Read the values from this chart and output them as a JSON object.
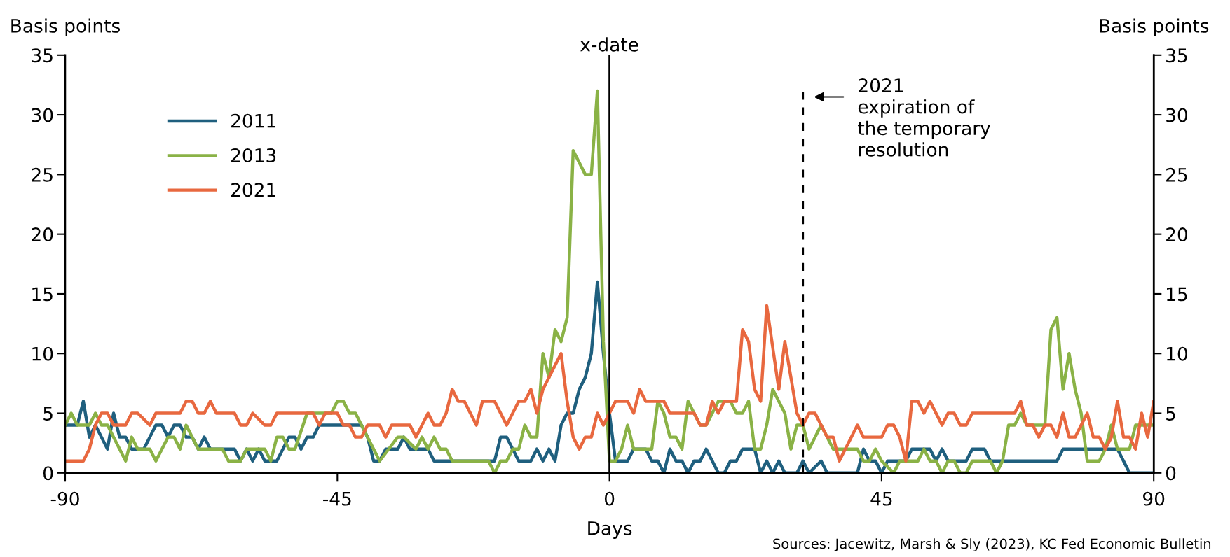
{
  "chart_data": {
    "type": "line",
    "xlabel": "Days",
    "ylabel": "Basis points",
    "y2label": "Basis points",
    "xlim": [
      -90,
      90
    ],
    "xticks": [
      -90,
      -45,
      0,
      45,
      90
    ],
    "ylim": [
      0,
      35
    ],
    "yticks": [
      0,
      5,
      10,
      15,
      20,
      25,
      30,
      35
    ],
    "y2lim": [
      0,
      35
    ],
    "y2ticks": [
      0,
      5,
      10,
      15,
      20,
      25,
      30,
      35
    ],
    "grid": false,
    "legend": "top left",
    "marker": "none",
    "line_style": "solid",
    "ref_lines": [
      {
        "axis": "x",
        "value": 0,
        "label": "x-date",
        "color": "#000000",
        "line_style": "solid"
      },
      {
        "axis": "x",
        "value": 32,
        "label": "2021\nexpiration of\nthe temporary\nresolution",
        "color": "#000000",
        "line_style": "dashed"
      }
    ],
    "annotations": [
      "Sources: Jacewitz, Marsh & Sly (2023), KC Fed Economic Bulletin"
    ],
    "series": [
      {
        "name": "2011",
        "color": "#1f5f7e",
        "x": [
          -90,
          -88,
          -87,
          -86,
          -85,
          -84,
          -83,
          -82,
          -81,
          -80,
          -79,
          -77,
          -75,
          -74,
          -73,
          -72,
          -71,
          -70,
          -69,
          -68,
          -67,
          -66,
          -62,
          -61,
          -60,
          -59,
          -58,
          -57,
          -55,
          -54,
          -53,
          -52,
          -51,
          -50,
          -49,
          -48,
          -41,
          -40,
          -39,
          -38,
          -37,
          -35,
          -34,
          -33,
          -30,
          -29,
          -19,
          -18,
          -17,
          -16,
          -15,
          -13,
          -12,
          -11,
          -10,
          -9,
          -8,
          -7,
          -6,
          -5,
          -4,
          -3,
          -2,
          -1,
          0,
          1,
          3,
          4,
          6,
          7,
          8,
          9,
          10,
          11,
          12,
          13,
          14,
          15,
          16,
          18,
          19,
          20,
          21,
          22,
          24,
          25,
          26,
          27,
          28,
          29,
          31,
          32,
          33,
          35,
          36,
          41,
          42,
          43,
          44,
          45,
          46,
          49,
          50,
          53,
          54,
          55,
          56,
          59,
          60,
          62,
          63,
          74,
          75,
          84,
          85,
          86,
          90
        ],
        "values": [
          4,
          4,
          6,
          3,
          4,
          3,
          2,
          5,
          3,
          3,
          2,
          2,
          4,
          4,
          3,
          4,
          4,
          3,
          3,
          2,
          3,
          2,
          2,
          1,
          2,
          1,
          2,
          1,
          1,
          2,
          3,
          3,
          2,
          3,
          3,
          4,
          4,
          3,
          1,
          1,
          2,
          2,
          3,
          2,
          2,
          1,
          1,
          3,
          3,
          2,
          1,
          1,
          2,
          1,
          2,
          1,
          4,
          5,
          5,
          7,
          8,
          10,
          16,
          10,
          5,
          1,
          1,
          2,
          2,
          1,
          1,
          0,
          2,
          1,
          1,
          0,
          1,
          1,
          2,
          0,
          0,
          1,
          1,
          2,
          2,
          0,
          1,
          0,
          1,
          0,
          0,
          1,
          0,
          1,
          0,
          0,
          2,
          1,
          1,
          0,
          1,
          1,
          2,
          2,
          1,
          2,
          1,
          1,
          2,
          2,
          1,
          1,
          2,
          2,
          1,
          0,
          0
        ]
      },
      {
        "name": "2013",
        "color": "#8ab246",
        "x": [
          -90,
          -89,
          -88,
          -86,
          -85,
          -84,
          -83,
          -82,
          -80,
          -79,
          -78,
          -76,
          -75,
          -74,
          -73,
          -72,
          -71,
          -70,
          -69,
          -68,
          -64,
          -63,
          -61,
          -60,
          -57,
          -56,
          -55,
          -54,
          -53,
          -52,
          -50,
          -46,
          -45,
          -44,
          -43,
          -42,
          -41,
          -40,
          -38,
          -35,
          -34,
          -32,
          -31,
          -30,
          -29,
          -28,
          -27,
          -26,
          -20,
          -19,
          -18,
          -17,
          -16,
          -15,
          -14,
          -13,
          -12,
          -11,
          -10,
          -9,
          -8,
          -7,
          -6,
          -5,
          -4,
          -3,
          -2,
          -1,
          0,
          1,
          2,
          3,
          4,
          7,
          8,
          9,
          10,
          11,
          12,
          13,
          14,
          15,
          16,
          17,
          18,
          20,
          21,
          22,
          23,
          24,
          25,
          26,
          27,
          28,
          29,
          30,
          31,
          32,
          33,
          34,
          35,
          36,
          37,
          41,
          42,
          43,
          44,
          45,
          47,
          48,
          51,
          52,
          53,
          54,
          55,
          56,
          57,
          58,
          59,
          60,
          63,
          64,
          65,
          66,
          67,
          68,
          69,
          72,
          73,
          74,
          75,
          76,
          77,
          78,
          79,
          81,
          82,
          83,
          84,
          86,
          87,
          90
        ],
        "values": [
          4,
          5,
          4,
          4,
          5,
          4,
          4,
          3,
          1,
          3,
          2,
          2,
          1,
          2,
          3,
          3,
          2,
          4,
          3,
          2,
          2,
          1,
          1,
          2,
          2,
          1,
          3,
          3,
          2,
          2,
          5,
          5,
          6,
          6,
          5,
          5,
          4,
          3,
          1,
          3,
          3,
          2,
          3,
          2,
          3,
          2,
          2,
          1,
          1,
          0,
          1,
          1,
          2,
          2,
          4,
          3,
          3,
          10,
          8,
          12,
          11,
          13,
          27,
          26,
          25,
          25,
          32,
          11,
          1,
          1,
          2,
          4,
          2,
          2,
          6,
          5,
          3,
          3,
          2,
          6,
          5,
          4,
          4,
          5,
          6,
          6,
          5,
          5,
          6,
          2,
          2,
          4,
          7,
          6,
          5,
          2,
          4,
          4,
          2,
          3,
          4,
          3,
          2,
          2,
          1,
          1,
          2,
          1,
          0,
          1,
          1,
          2,
          1,
          1,
          0,
          1,
          1,
          0,
          0,
          1,
          1,
          0,
          1,
          4,
          4,
          5,
          4,
          4,
          12,
          13,
          7,
          10,
          7,
          5,
          1,
          1,
          2,
          4,
          2,
          2,
          4,
          4
        ]
      },
      {
        "name": "2021",
        "color": "#e8683f",
        "x": [
          -90,
          -87,
          -86,
          -85,
          -84,
          -83,
          -82,
          -80,
          -79,
          -78,
          -76,
          -75,
          -71,
          -70,
          -69,
          -68,
          -67,
          -66,
          -65,
          -62,
          -61,
          -60,
          -59,
          -57,
          -56,
          -55,
          -49,
          -48,
          -47,
          -45,
          -44,
          -43,
          -42,
          -41,
          -40,
          -38,
          -37,
          -36,
          -33,
          -32,
          -30,
          -29,
          -28,
          -27,
          -26,
          -25,
          -24,
          -22,
          -21,
          -19,
          -17,
          -16,
          -15,
          -14,
          -13,
          -12,
          -11,
          -10,
          -9,
          -8,
          -7,
          -6,
          -5,
          -4,
          -3,
          -2,
          -1,
          0,
          1,
          3,
          4,
          5,
          6,
          9,
          10,
          14,
          15,
          16,
          17,
          18,
          19,
          21,
          22,
          23,
          24,
          25,
          26,
          28,
          29,
          30,
          31,
          32,
          33,
          34,
          35,
          36,
          37,
          38,
          39,
          41,
          42,
          45,
          46,
          47,
          48,
          49,
          50,
          51,
          52,
          53,
          55,
          56,
          57,
          58,
          59,
          60,
          67,
          68,
          69,
          70,
          71,
          72,
          73,
          74,
          75,
          76,
          77,
          79,
          80,
          81,
          82,
          83,
          84,
          85,
          86,
          87,
          88,
          89,
          90
        ],
        "values": [
          1,
          1,
          2,
          4,
          5,
          5,
          4,
          4,
          5,
          5,
          4,
          5,
          5,
          6,
          6,
          5,
          5,
          6,
          5,
          5,
          4,
          4,
          5,
          4,
          4,
          5,
          5,
          4,
          5,
          5,
          4,
          4,
          3,
          3,
          4,
          4,
          3,
          4,
          4,
          3,
          5,
          4,
          4,
          5,
          7,
          6,
          6,
          4,
          6,
          6,
          4,
          5,
          6,
          6,
          7,
          5,
          7,
          8,
          9,
          10,
          6,
          3,
          2,
          3,
          3,
          5,
          4,
          5,
          6,
          6,
          5,
          7,
          6,
          6,
          5,
          5,
          4,
          4,
          6,
          5,
          6,
          6,
          12,
          11,
          7,
          6,
          14,
          7,
          11,
          8,
          5,
          4,
          5,
          5,
          4,
          3,
          3,
          1,
          2,
          4,
          3,
          3,
          4,
          4,
          3,
          1,
          6,
          6,
          5,
          6,
          4,
          5,
          5,
          4,
          4,
          5,
          5,
          6,
          4,
          4,
          3,
          4,
          4,
          3,
          5,
          3,
          3,
          5,
          3,
          3,
          2,
          3,
          6,
          3,
          3,
          2,
          5,
          3,
          6
        ]
      }
    ]
  }
}
